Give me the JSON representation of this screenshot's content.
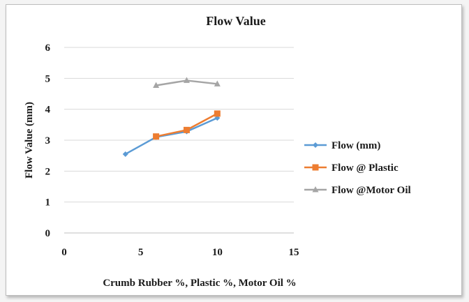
{
  "chart_data": {
    "type": "line",
    "title": "Flow Value",
    "xlabel": "Crumb Rubber %, Plastic %, Motor Oil %",
    "ylabel": "Flow Value (mm)",
    "xlim": [
      0,
      15
    ],
    "ylim": [
      0,
      6
    ],
    "xticks": [
      0,
      5,
      10,
      15
    ],
    "yticks": [
      0,
      1,
      2,
      3,
      4,
      5,
      6
    ],
    "grid": "horizontal",
    "legend_position": "right",
    "series": [
      {
        "name": "Flow (mm)",
        "color": "#5b9bd5",
        "marker": "diamond",
        "x": [
          4,
          6,
          8,
          10
        ],
        "y": [
          2.55,
          3.1,
          3.28,
          3.72
        ]
      },
      {
        "name": "Flow @ Plastic",
        "color": "#ed7d31",
        "marker": "square",
        "x": [
          6,
          8,
          10
        ],
        "y": [
          3.12,
          3.33,
          3.86
        ]
      },
      {
        "name": "Flow @Motor Oil",
        "color": "#a5a5a5",
        "marker": "triangle",
        "x": [
          6,
          8,
          10
        ],
        "y": [
          4.77,
          4.93,
          4.82
        ]
      }
    ]
  }
}
